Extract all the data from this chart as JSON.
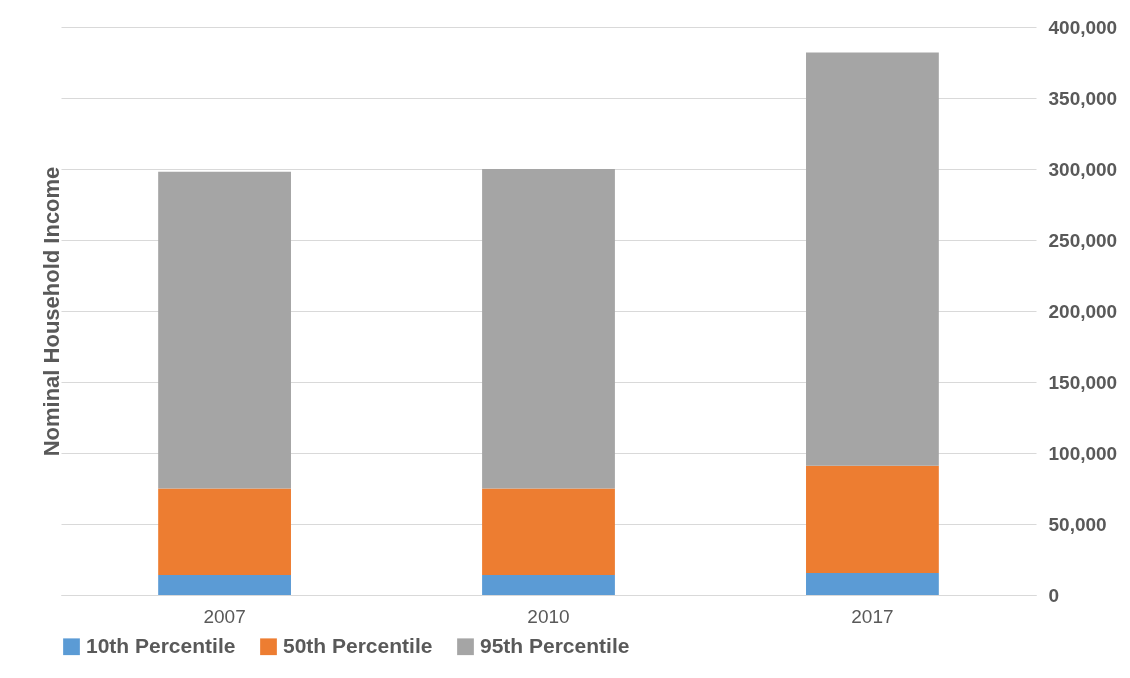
{
  "chart_data": {
    "type": "bar",
    "ylabel": "Nominal Household Income",
    "categories": [
      "2007",
      "2010",
      "2017"
    ],
    "stacked": true,
    "series": [
      {
        "name": "10th Percentile",
        "color": "#5b9bd5",
        "values": [
          14000,
          14000,
          15500
        ]
      },
      {
        "name": "50th Percentile",
        "color": "#ed7d31",
        "values": [
          61000,
          61000,
          75500
        ]
      },
      {
        "name": "95th Percentile",
        "color": "#a5a5a5",
        "values": [
          223000,
          225000,
          291000
        ]
      }
    ],
    "ylim": [
      0,
      400000
    ],
    "yticks": [
      0,
      {
        "value": 50000,
        "label": "50,000"
      },
      {
        "value": 100000,
        "label": "100,000"
      },
      {
        "value": 150000,
        "label": "150,000"
      },
      {
        "value": 200000,
        "label": "200,000"
      },
      {
        "value": 250000,
        "label": "250,000"
      },
      {
        "value": 300000,
        "label": "300,000"
      },
      {
        "value": 350000,
        "label": "350,000"
      },
      {
        "value": 400000,
        "label": "400,000"
      }
    ],
    "grid": "y",
    "legend": "bottom"
  }
}
